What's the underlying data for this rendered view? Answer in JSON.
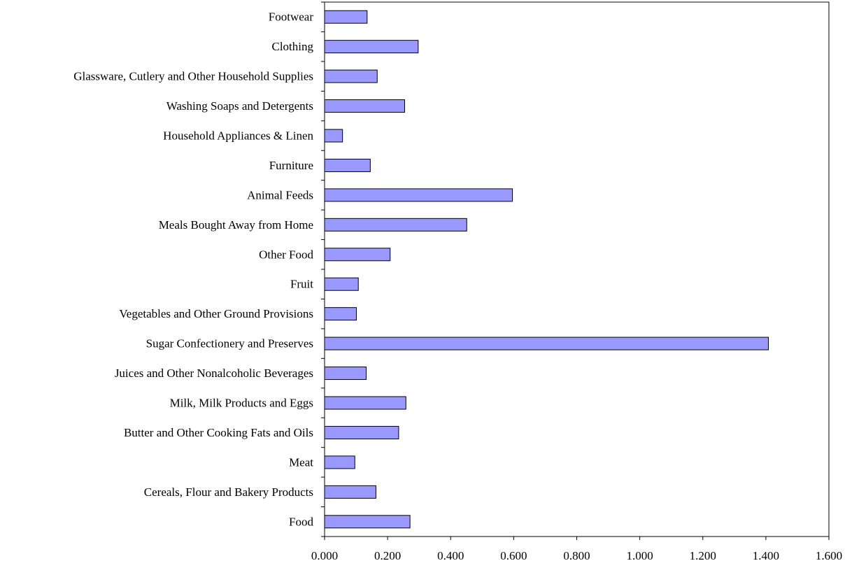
{
  "chart_data": {
    "type": "bar",
    "orientation": "horizontal",
    "categories": [
      "Food",
      "Cereals, Flour and Bakery Products",
      "Meat",
      "Butter and Other Cooking Fats and Oils",
      "Milk, Milk Products and Eggs",
      "Juices and Other Nonalcoholic Beverages",
      "Sugar Confectionery and Preserves",
      "Vegetables and Other Ground Provisions",
      "Fruit",
      "Other Food",
      "Meals Bought Away from Home",
      "Animal Feeds",
      "Furniture",
      "Household Appliances & Linen",
      "Washing Soaps and Detergents",
      "Glassware, Cutlery and Other Household Supplies",
      "Clothing",
      "Footwear"
    ],
    "values": [
      0.271,
      0.163,
      0.096,
      0.235,
      0.258,
      0.132,
      1.408,
      0.101,
      0.107,
      0.208,
      0.451,
      0.596,
      0.145,
      0.057,
      0.254,
      0.167,
      0.297,
      0.135
    ],
    "xlim": [
      0,
      1.6
    ],
    "ticks": [
      {
        "value": 0.0,
        "label": "0.000"
      },
      {
        "value": 0.2,
        "label": "0.200"
      },
      {
        "value": 0.4,
        "label": "0.400"
      },
      {
        "value": 0.6,
        "label": "0.600"
      },
      {
        "value": 0.8,
        "label": "0.800"
      },
      {
        "value": 1.0,
        "label": "1.000"
      },
      {
        "value": 1.2,
        "label": "1.200"
      },
      {
        "value": 1.4,
        "label": "1.400"
      },
      {
        "value": 1.6,
        "label": "1.600"
      }
    ],
    "grid": false,
    "legend": "none",
    "bar_color": "#9999ff",
    "bar_edge_color": "#000000"
  }
}
